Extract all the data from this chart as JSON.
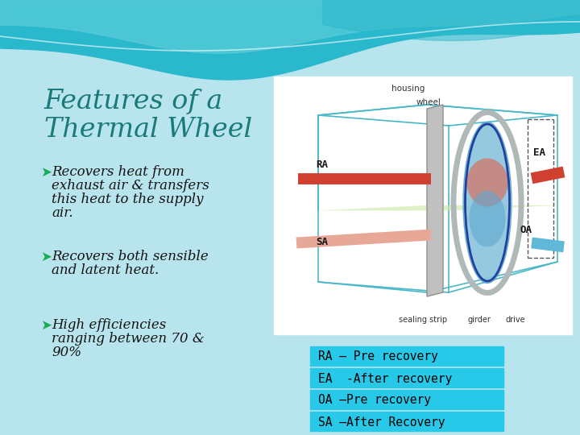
{
  "title_line1": "Features of a",
  "title_line2": "Thermal Wheel",
  "title_color": "#1a7a7a",
  "bg_color": "#b8e4ee",
  "wave_color1": "#2ab8cc",
  "wave_color2": "#5accd8",
  "wave_color3": "#80d8e4",
  "bullet_arrow_color": "#1aaa55",
  "text_color": "#111111",
  "bullet1_line1": "➤Recovers heat from",
  "bullet1_line2": "exhaust air & transfers",
  "bullet1_line3": "this heat to the supply",
  "bullet1_line4": "air.",
  "bullet2_line1": "➤Recovers both sensible",
  "bullet2_line2": "and latent heat.",
  "bullet3_line1": "➤High efficiencies",
  "bullet3_line2": "ranging between 70 &",
  "bullet3_line3": "90%",
  "legend_items": [
    "RA – Pre recovery",
    "EA  -After recovery",
    "OA –Pre recovery",
    "SA –After Recovery"
  ],
  "legend_bg": "#28c8e8",
  "legend_text_color": "#000000"
}
